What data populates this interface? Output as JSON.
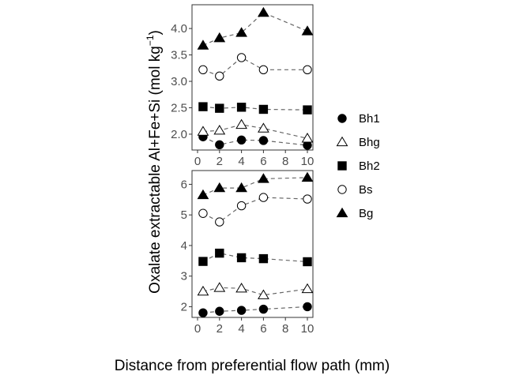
{
  "chart_data": {
    "type": "scatter",
    "xlabel": "Distance from preferential flow path (mm)",
    "ylabel_main": "Oxalate extractable Al+Fe+Si (mol  kg",
    "ylabel_sup": "−1",
    "ylabel_close": ")",
    "x": [
      0.5,
      2,
      4,
      6,
      10
    ],
    "xlim": [
      0,
      10
    ],
    "x_ticks": [
      0,
      2,
      4,
      6,
      8,
      10
    ],
    "x_tick_labels": [
      "0",
      "2",
      "4",
      "6",
      "8",
      "10"
    ],
    "legend_position": "right",
    "series_order": [
      "Bh1",
      "Bhg",
      "Bh2",
      "Bs",
      "Bg"
    ],
    "series_markers": {
      "Bh1": "filled-circle",
      "Bhg": "open-triangle",
      "Bh2": "filled-square",
      "Bs": "open-circle",
      "Bg": "filled-triangle"
    },
    "panels": [
      {
        "ylim": [
          1.7,
          4.45
        ],
        "y_ticks": [
          2.0,
          2.5,
          3.0,
          3.5,
          4.0
        ],
        "y_tick_labels": [
          "2.0",
          "2.5",
          "3.0",
          "3.5",
          "4.0"
        ],
        "series": [
          {
            "name": "Bh1",
            "values": [
              1.95,
              1.8,
              1.89,
              1.88,
              1.79
            ]
          },
          {
            "name": "Bhg",
            "values": [
              2.05,
              2.07,
              2.18,
              2.11,
              1.92
            ]
          },
          {
            "name": "Bh2",
            "values": [
              2.52,
              2.49,
              2.51,
              2.47,
              2.46
            ]
          },
          {
            "name": "Bs",
            "values": [
              3.22,
              3.1,
              3.45,
              3.22,
              3.22
            ]
          },
          {
            "name": "Bg",
            "values": [
              3.68,
              3.82,
              3.92,
              4.3,
              3.95
            ]
          }
        ]
      },
      {
        "ylim": [
          1.65,
          6.45
        ],
        "y_ticks": [
          2,
          3,
          4,
          5,
          6
        ],
        "y_tick_labels": [
          "2",
          "3",
          "4",
          "5",
          "6"
        ],
        "series": [
          {
            "name": "Bh1",
            "values": [
              1.8,
              1.85,
              1.88,
              1.92,
              2.0
            ]
          },
          {
            "name": "Bhg",
            "values": [
              2.5,
              2.62,
              2.6,
              2.38,
              2.58
            ]
          },
          {
            "name": "Bh2",
            "values": [
              3.48,
              3.75,
              3.6,
              3.57,
              3.47
            ]
          },
          {
            "name": "Bs",
            "values": [
              5.05,
              4.77,
              5.3,
              5.57,
              5.52
            ]
          },
          {
            "name": "Bg",
            "values": [
              5.65,
              5.88,
              5.88,
              6.18,
              6.22
            ]
          }
        ]
      }
    ]
  }
}
